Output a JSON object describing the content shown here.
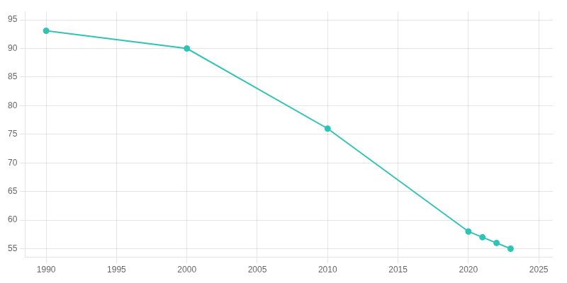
{
  "chart_data": {
    "type": "line",
    "x": [
      1990,
      2000,
      2010,
      2020,
      2021,
      2022,
      2023
    ],
    "values": [
      93.1,
      90.0,
      76.0,
      58.0,
      57.0,
      56.0,
      55.0
    ],
    "color": "#2ec4b6",
    "marker": "circle",
    "xlim": [
      1988.5,
      2026
    ],
    "ylim": [
      53.5,
      96.5
    ],
    "xticks": [
      1990,
      1995,
      2000,
      2005,
      2010,
      2015,
      2020,
      2025
    ],
    "yticks": [
      55,
      60,
      65,
      70,
      75,
      80,
      85,
      90,
      95
    ],
    "grid": true
  }
}
